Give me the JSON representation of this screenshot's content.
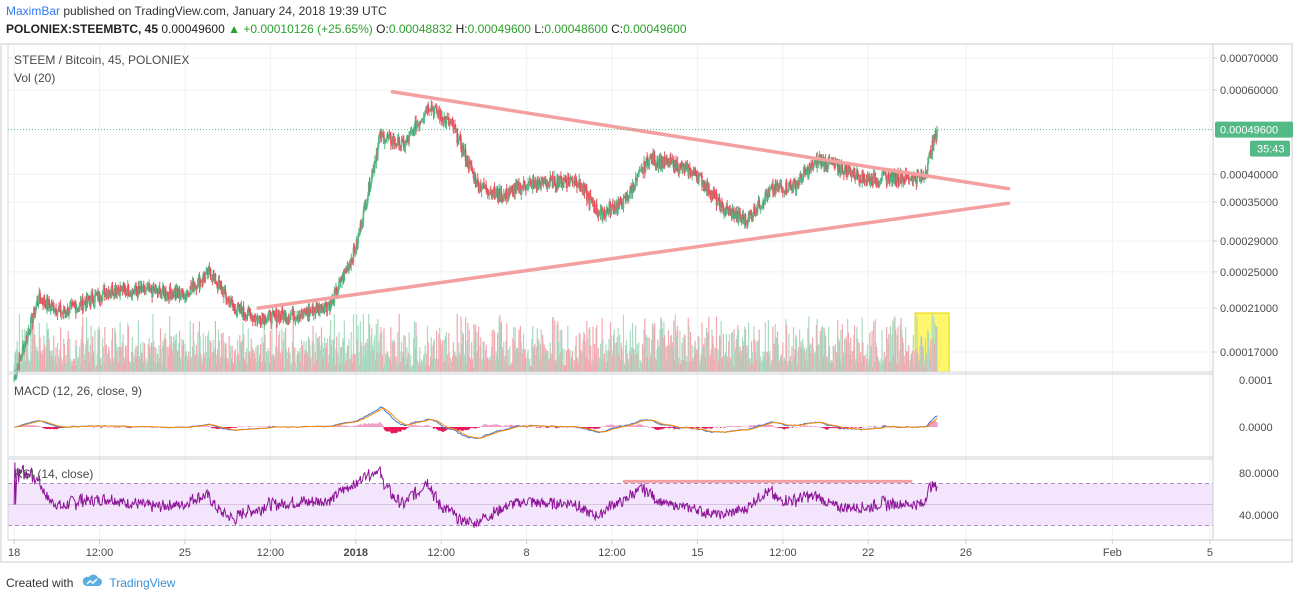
{
  "header": {
    "author": "MaximBar",
    "published_text": "published on TradingView.com, January 24, 2018 19:39 UTC",
    "symbol": "POLONIEX:STEEMBTC, 45",
    "price": "0.00049600",
    "change": "+0.00010126 (+25.65%)",
    "o_label": "O:",
    "o_value": "0.00048832",
    "h_label": "H:",
    "h_value": "0.00049600",
    "l_label": "L:",
    "l_value": "0.00048600",
    "c_label": "C:",
    "c_value": "0.00049600"
  },
  "legends": {
    "main": "STEEM / Bitcoin, 45, POLONIEX",
    "vol": "Vol (20)",
    "macd": "MACD (12, 26, close, 9)",
    "rsi": "RSI (14, close)"
  },
  "price_axis": {
    "ticks": [
      "0.00070000",
      "0.00060000",
      "0.00040000",
      "0.00035000",
      "0.00029000",
      "0.00025000",
      "0.00021000",
      "0.00017000"
    ],
    "current_price_label": "0.00049600",
    "countdown_label": "35:43"
  },
  "macd_axis": {
    "ticks": [
      "0.0001",
      "0.0000"
    ]
  },
  "rsi_axis": {
    "ticks": [
      "80.0000",
      "40.0000"
    ]
  },
  "time_axis": {
    "ticks": [
      "18",
      "12:00",
      "25",
      "12:00",
      "2018",
      "12:00",
      "8",
      "12:00",
      "15",
      "12:00",
      "22",
      "26",
      "Feb",
      "5"
    ]
  },
  "footer": {
    "created_with": "Created with",
    "brand": "TradingView"
  },
  "colors": {
    "up": "#53b987",
    "down": "#eb4d5c",
    "trendline": "#f4a0a0",
    "highlight": "#fff33b",
    "macd_line": "#3c78d8",
    "signal_line": "#ff8c00",
    "rsi_line": "#8e1599",
    "rsi_band": "#f3e5fb",
    "price_badge": "#53b987"
  },
  "chart_data": {
    "type": "candlestick",
    "title": "STEEM / Bitcoin, 45, POLONIEX",
    "price_ylim": [
      0.00017,
      0.0007
    ],
    "series_waypoints": [
      {
        "x": "Dec 18 00:00",
        "close": 0.00015
      },
      {
        "x": "Dec 19 00:00",
        "close": 0.00022
      },
      {
        "x": "Dec 20 00:00",
        "close": 0.000205
      },
      {
        "x": "Dec 22 00:00",
        "close": 0.00023
      },
      {
        "x": "Dec 25 00:00",
        "close": 0.000225
      },
      {
        "x": "Dec 26 00:00",
        "close": 0.00025
      },
      {
        "x": "Dec 27 00:00",
        "close": 0.00021
      },
      {
        "x": "Dec 28 00:00",
        "close": 0.0002
      },
      {
        "x": "Dec 30 00:00",
        "close": 0.000205
      },
      {
        "x": "Dec 31 00:00",
        "close": 0.000215
      },
      {
        "x": "Jan 1 00:00",
        "close": 0.00028
      },
      {
        "x": "Jan 2 00:00",
        "close": 0.00048
      },
      {
        "x": "Jan 3 00:00",
        "close": 0.00046
      },
      {
        "x": "Jan 4 00:00",
        "close": 0.00056
      },
      {
        "x": "Jan 5 00:00",
        "close": 0.0005
      },
      {
        "x": "Jan 6 00:00",
        "close": 0.00038
      },
      {
        "x": "Jan 7 00:00",
        "close": 0.00036
      },
      {
        "x": "Jan 8 00:00",
        "close": 0.00038
      },
      {
        "x": "Jan 10 00:00",
        "close": 0.00039
      },
      {
        "x": "Jan 11 00:00",
        "close": 0.00033
      },
      {
        "x": "Jan 12 00:00",
        "close": 0.00035
      },
      {
        "x": "Jan 13 00:00",
        "close": 0.00043
      },
      {
        "x": "Jan 14 00:00",
        "close": 0.00042
      },
      {
        "x": "Jan 15 00:00",
        "close": 0.0004
      },
      {
        "x": "Jan 16 00:00",
        "close": 0.00034
      },
      {
        "x": "Jan 17 00:00",
        "close": 0.00032
      },
      {
        "x": "Jan 18 00:00",
        "close": 0.00037
      },
      {
        "x": "Jan 19 00:00",
        "close": 0.00038
      },
      {
        "x": "Jan 20 00:00",
        "close": 0.00043
      },
      {
        "x": "Jan 21 00:00",
        "close": 0.00041
      },
      {
        "x": "Jan 22 00:00",
        "close": 0.00039
      },
      {
        "x": "Jan 23 00:00",
        "close": 0.000395
      },
      {
        "x": "Jan 24 06:00",
        "close": 0.000392
      },
      {
        "x": "Jan 24 19:39",
        "close": 0.000496
      }
    ],
    "last_price": 0.000496,
    "volume_label": "Vol (20)",
    "macd": {
      "label": "MACD (12, 26, close, 9)",
      "ylim": [
        -3e-05,
        0.0001
      ]
    },
    "rsi": {
      "label": "RSI (14, close)",
      "upper_band": 70,
      "lower_band": 30,
      "ylim": [
        20,
        90
      ]
    },
    "trendlines": [
      {
        "name": "upper",
        "from": {
          "x": "Jan 2 12:00",
          "y": 0.000595
        },
        "to": {
          "x": "Jan 27 18:00",
          "y": 0.000373
        }
      },
      {
        "name": "lower",
        "from": {
          "x": "Dec 28 00:00",
          "y": 0.00021
        },
        "to": {
          "x": "Jan 27 18:00",
          "y": 0.000348
        }
      },
      {
        "name": "rsi-resistance",
        "from": {
          "x": "Jan 12 00:00",
          "y": 72
        },
        "to": {
          "x": "Jan 23 18:00",
          "y": 72
        }
      }
    ],
    "highlight": {
      "x_from": "Jan 24 00:00",
      "x_to": "Jan 24 19:39",
      "pane": "volume"
    }
  }
}
